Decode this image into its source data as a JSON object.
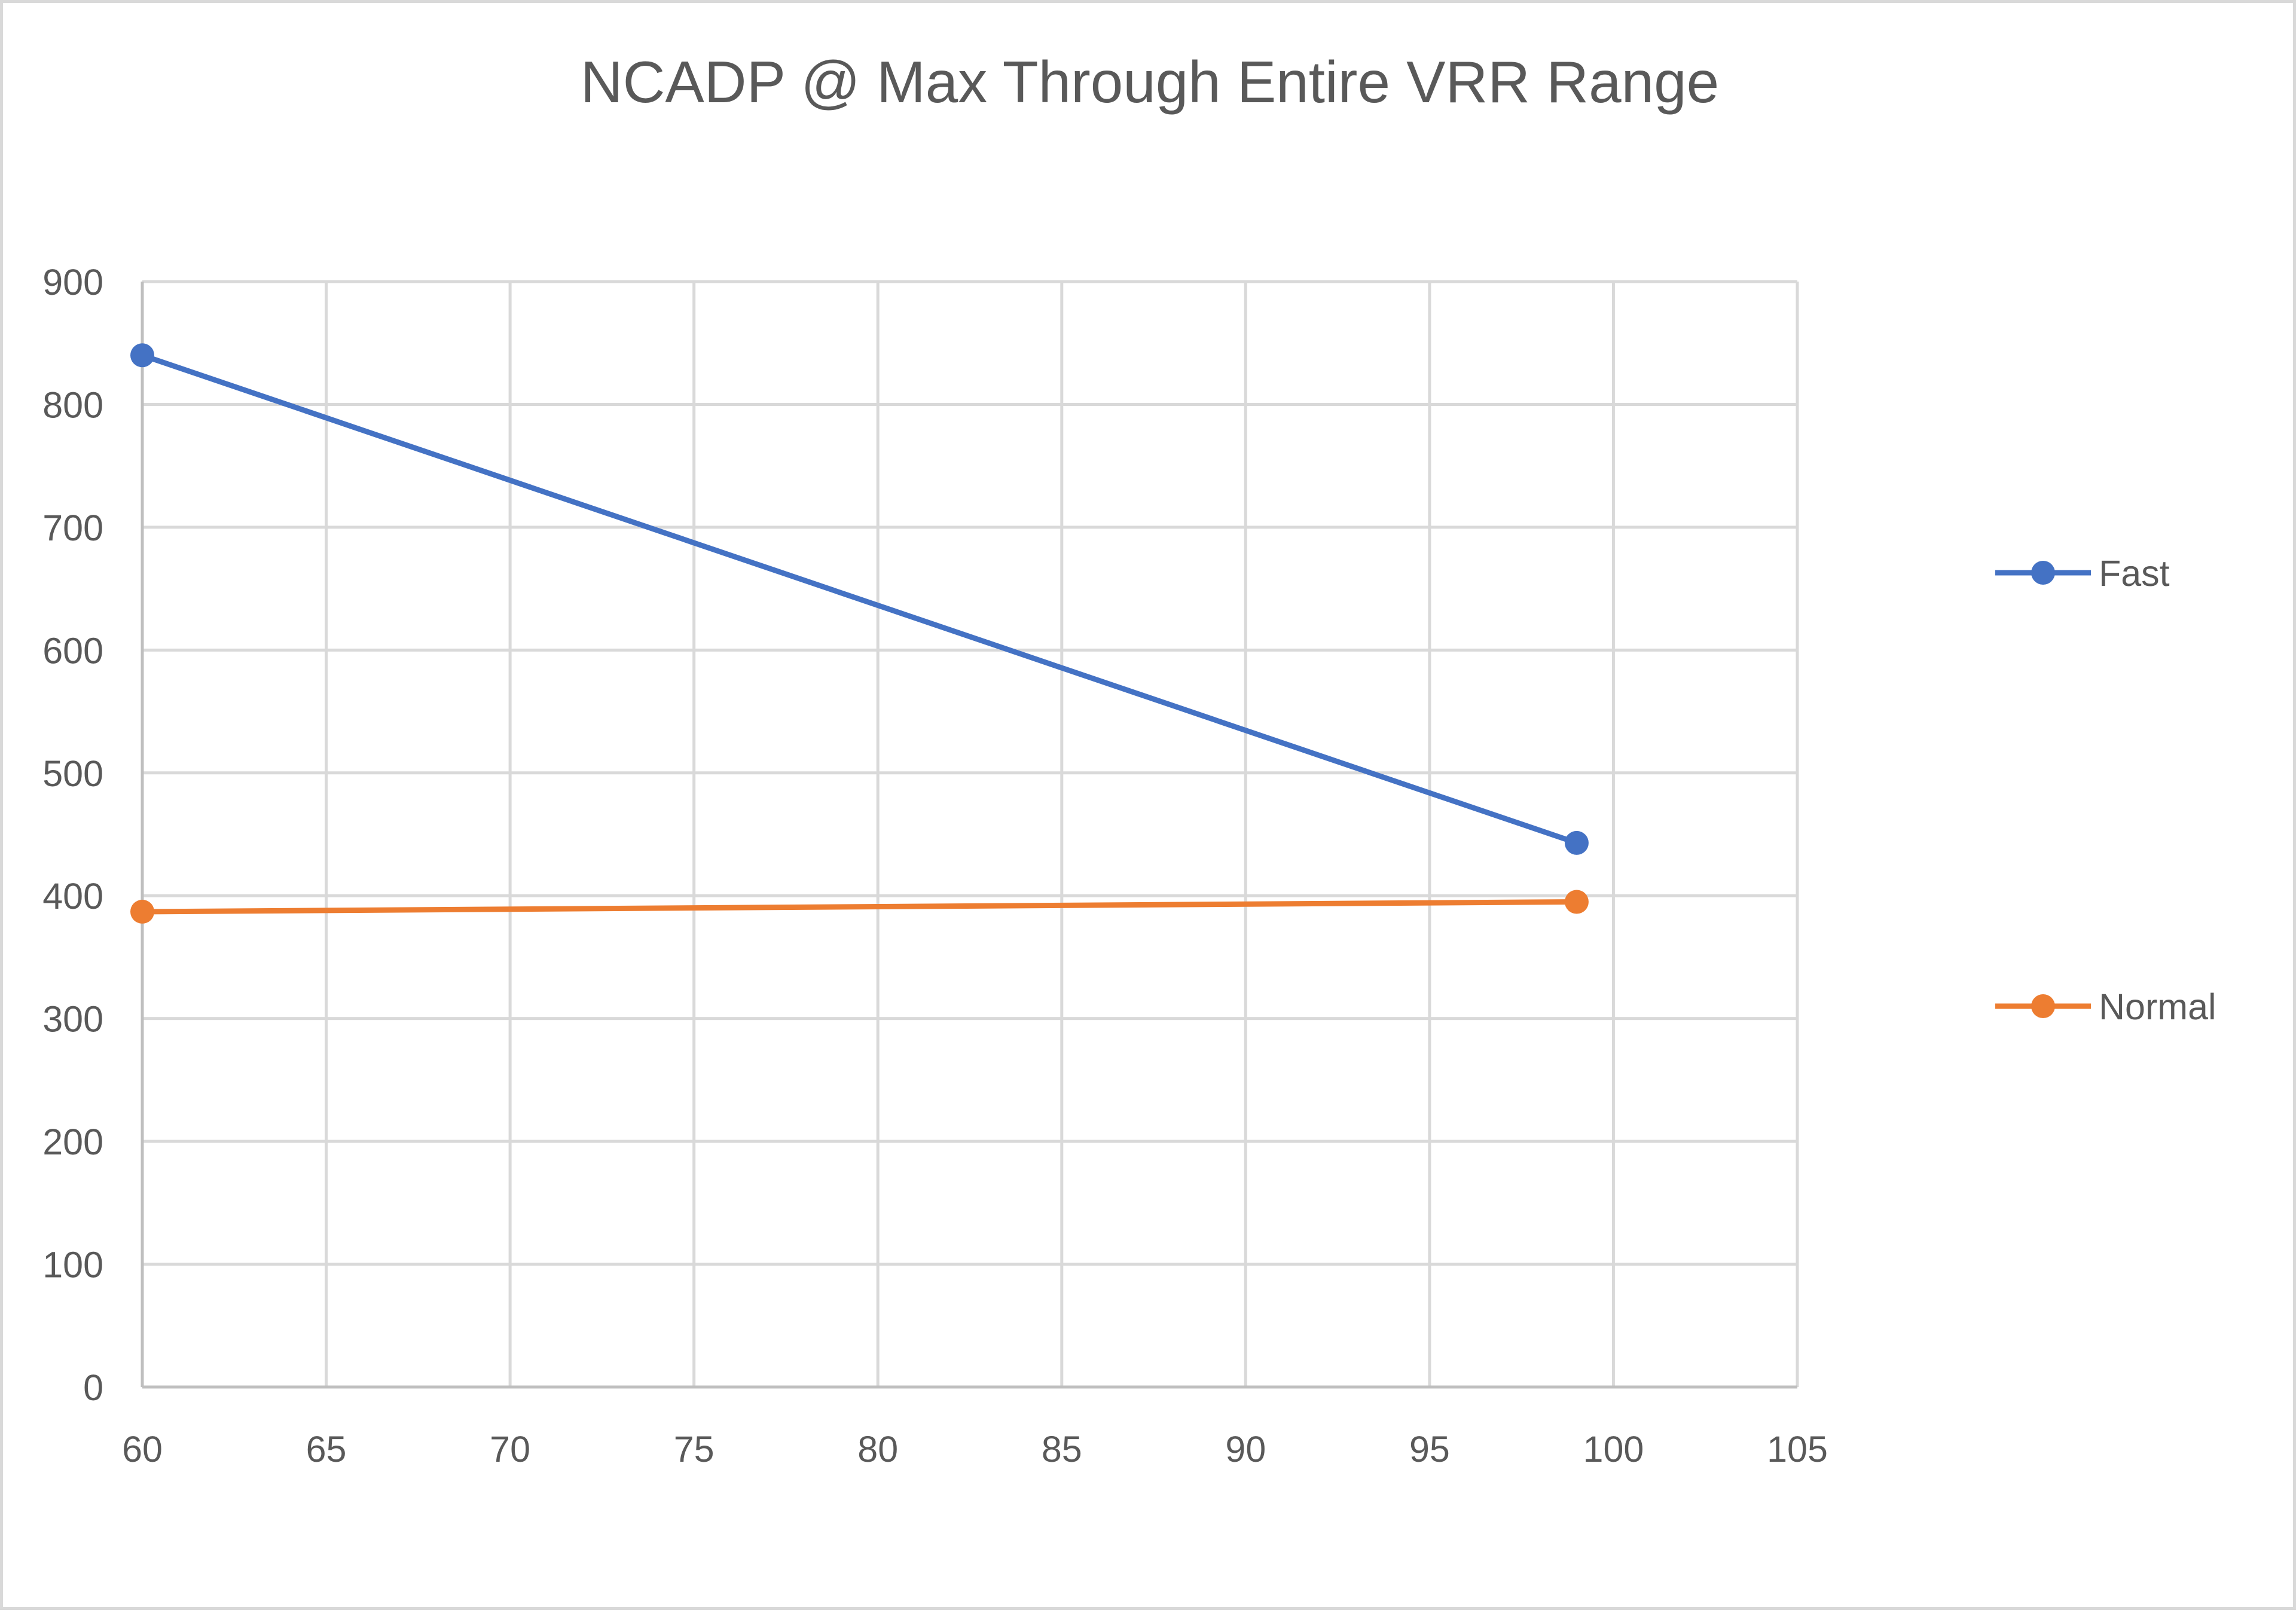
{
  "chart_data": {
    "type": "scatter",
    "title": "NCADP @ Max Through Entire VRR Range",
    "xlabel": "",
    "ylabel": "",
    "xlim": [
      60,
      105
    ],
    "ylim": [
      0,
      900
    ],
    "x_ticks": [
      60,
      65,
      70,
      75,
      80,
      85,
      90,
      95,
      100,
      105
    ],
    "y_ticks": [
      0,
      100,
      200,
      300,
      400,
      500,
      600,
      700,
      800,
      900
    ],
    "grid": true,
    "legend_position": "right",
    "series": [
      {
        "name": "Fast",
        "color": "#4472c4",
        "x": [
          60,
          99
        ],
        "y": [
          840,
          443
        ]
      },
      {
        "name": "Normal",
        "color": "#ed7d31",
        "x": [
          60,
          99
        ],
        "y": [
          387,
          395
        ]
      }
    ]
  }
}
